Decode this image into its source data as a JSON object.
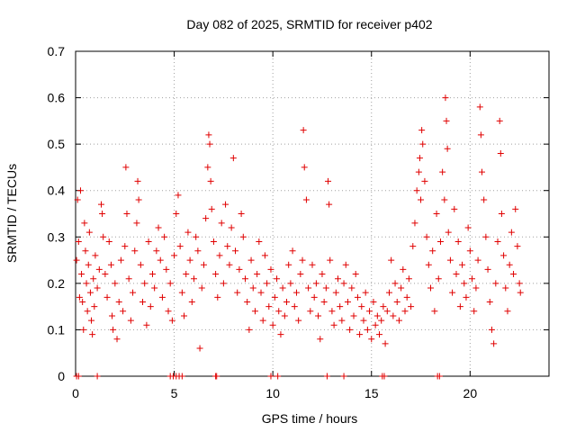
{
  "chart_data": {
    "type": "scatter",
    "title": "Day 082 of 2025, SRMTID for receiver p402",
    "xlabel": "GPS time / hours",
    "ylabel": "SRMTID / TECUs",
    "xlim": [
      0,
      24
    ],
    "ylim": [
      0,
      0.7
    ],
    "xticks": [
      0,
      5,
      10,
      15,
      20
    ],
    "xtick_labels": [
      "0",
      "5",
      "10",
      "15",
      "20"
    ],
    "yticks": [
      0,
      0.1,
      0.2,
      0.3,
      0.4,
      0.5,
      0.6,
      0.7
    ],
    "ytick_labels": [
      "0",
      "0.1",
      "0.2",
      "0.3",
      "0.4",
      "0.5",
      "0.6",
      "0.7"
    ],
    "grid": true,
    "marker": "+",
    "color": "#e00000",
    "series": [
      {
        "name": "SRMTID",
        "points": [
          [
            0.05,
            0.25
          ],
          [
            0.1,
            0.38
          ],
          [
            0.15,
            0.29
          ],
          [
            0.2,
            0.17
          ],
          [
            0.25,
            0.4
          ],
          [
            0.3,
            0.22
          ],
          [
            0.35,
            0.16
          ],
          [
            0.4,
            0.1
          ],
          [
            0.45,
            0.33
          ],
          [
            0.5,
            0.27
          ],
          [
            0.55,
            0.2
          ],
          [
            0.6,
            0.14
          ],
          [
            0.65,
            0.24
          ],
          [
            0.7,
            0.31
          ],
          [
            0.75,
            0.18
          ],
          [
            0.8,
            0.12
          ],
          [
            0.85,
            0.09
          ],
          [
            0.9,
            0.21
          ],
          [
            0.95,
            0.15
          ],
          [
            1.0,
            0.26
          ],
          [
            1.1,
            0.19
          ],
          [
            1.2,
            0.23
          ],
          [
            1.3,
            0.37
          ],
          [
            1.35,
            0.35
          ],
          [
            1.4,
            0.3
          ],
          [
            1.5,
            0.22
          ],
          [
            1.6,
            0.17
          ],
          [
            1.7,
            0.29
          ],
          [
            1.8,
            0.24
          ],
          [
            1.85,
            0.13
          ],
          [
            1.9,
            0.1
          ],
          [
            2.0,
            0.2
          ],
          [
            2.1,
            0.08
          ],
          [
            2.2,
            0.16
          ],
          [
            2.3,
            0.25
          ],
          [
            2.4,
            0.14
          ],
          [
            2.5,
            0.28
          ],
          [
            2.55,
            0.45
          ],
          [
            2.6,
            0.35
          ],
          [
            2.7,
            0.21
          ],
          [
            2.8,
            0.12
          ],
          [
            2.9,
            0.18
          ],
          [
            3.0,
            0.27
          ],
          [
            3.1,
            0.33
          ],
          [
            3.15,
            0.42
          ],
          [
            3.2,
            0.38
          ],
          [
            3.3,
            0.24
          ],
          [
            3.4,
            0.16
          ],
          [
            3.5,
            0.2
          ],
          [
            3.6,
            0.11
          ],
          [
            3.7,
            0.29
          ],
          [
            3.8,
            0.15
          ],
          [
            3.9,
            0.22
          ],
          [
            4.0,
            0.19
          ],
          [
            4.1,
            0.27
          ],
          [
            4.2,
            0.32
          ],
          [
            4.3,
            0.25
          ],
          [
            4.4,
            0.17
          ],
          [
            4.5,
            0.3
          ],
          [
            4.6,
            0.23
          ],
          [
            4.7,
            0.14
          ],
          [
            4.8,
            0.2
          ],
          [
            4.9,
            0.12
          ],
          [
            5.0,
            0.26
          ],
          [
            5.1,
            0.35
          ],
          [
            5.2,
            0.39
          ],
          [
            5.3,
            0.28
          ],
          [
            5.4,
            0.18
          ],
          [
            5.5,
            0.13
          ],
          [
            5.6,
            0.22
          ],
          [
            5.7,
            0.31
          ],
          [
            5.8,
            0.25
          ],
          [
            5.9,
            0.16
          ],
          [
            6.0,
            0.21
          ],
          [
            6.1,
            0.3
          ],
          [
            6.2,
            0.27
          ],
          [
            6.3,
            0.06
          ],
          [
            6.4,
            0.19
          ],
          [
            6.5,
            0.24
          ],
          [
            6.6,
            0.34
          ],
          [
            6.7,
            0.45
          ],
          [
            6.75,
            0.52
          ],
          [
            6.8,
            0.5
          ],
          [
            6.85,
            0.42
          ],
          [
            6.9,
            0.36
          ],
          [
            7.0,
            0.29
          ],
          [
            7.1,
            0.22
          ],
          [
            7.2,
            0.17
          ],
          [
            7.3,
            0.26
          ],
          [
            7.4,
            0.33
          ],
          [
            7.5,
            0.2
          ],
          [
            7.6,
            0.37
          ],
          [
            7.7,
            0.28
          ],
          [
            7.8,
            0.24
          ],
          [
            7.9,
            0.32
          ],
          [
            8.0,
            0.47
          ],
          [
            8.1,
            0.27
          ],
          [
            8.2,
            0.18
          ],
          [
            8.3,
            0.23
          ],
          [
            8.4,
            0.35
          ],
          [
            8.5,
            0.3
          ],
          [
            8.6,
            0.21
          ],
          [
            8.7,
            0.16
          ],
          [
            8.8,
            0.1
          ],
          [
            8.9,
            0.25
          ],
          [
            9.0,
            0.19
          ],
          [
            9.1,
            0.14
          ],
          [
            9.2,
            0.22
          ],
          [
            9.3,
            0.29
          ],
          [
            9.4,
            0.18
          ],
          [
            9.5,
            0.12
          ],
          [
            9.6,
            0.26
          ],
          [
            9.7,
            0.2
          ],
          [
            9.8,
            0.15
          ],
          [
            9.9,
            0.23
          ],
          [
            10.0,
            0.11
          ],
          [
            10.1,
            0.17
          ],
          [
            10.2,
            0.21
          ],
          [
            10.3,
            0.14
          ],
          [
            10.4,
            0.09
          ],
          [
            10.5,
            0.19
          ],
          [
            10.6,
            0.13
          ],
          [
            10.7,
            0.16
          ],
          [
            10.8,
            0.24
          ],
          [
            10.9,
            0.2
          ],
          [
            11.0,
            0.27
          ],
          [
            11.1,
            0.15
          ],
          [
            11.2,
            0.18
          ],
          [
            11.3,
            0.12
          ],
          [
            11.4,
            0.22
          ],
          [
            11.5,
            0.25
          ],
          [
            11.55,
            0.53
          ],
          [
            11.6,
            0.45
          ],
          [
            11.7,
            0.38
          ],
          [
            11.8,
            0.19
          ],
          [
            11.9,
            0.14
          ],
          [
            12.0,
            0.24
          ],
          [
            12.1,
            0.17
          ],
          [
            12.2,
            0.2
          ],
          [
            12.3,
            0.13
          ],
          [
            12.4,
            0.08
          ],
          [
            12.5,
            0.22
          ],
          [
            12.6,
            0.16
          ],
          [
            12.7,
            0.19
          ],
          [
            12.8,
            0.42
          ],
          [
            12.85,
            0.37
          ],
          [
            12.9,
            0.25
          ],
          [
            13.0,
            0.14
          ],
          [
            13.1,
            0.11
          ],
          [
            13.2,
            0.18
          ],
          [
            13.3,
            0.21
          ],
          [
            13.4,
            0.15
          ],
          [
            13.5,
            0.12
          ],
          [
            13.6,
            0.2
          ],
          [
            13.7,
            0.24
          ],
          [
            13.8,
            0.16
          ],
          [
            13.9,
            0.1
          ],
          [
            14.0,
            0.19
          ],
          [
            14.1,
            0.13
          ],
          [
            14.2,
            0.22
          ],
          [
            14.3,
            0.17
          ],
          [
            14.4,
            0.09
          ],
          [
            14.5,
            0.15
          ],
          [
            14.6,
            0.12
          ],
          [
            14.7,
            0.18
          ],
          [
            14.8,
            0.1
          ],
          [
            14.9,
            0.14
          ],
          [
            15.0,
            0.08
          ],
          [
            15.1,
            0.16
          ],
          [
            15.2,
            0.11
          ],
          [
            15.3,
            0.13
          ],
          [
            15.4,
            0.09
          ],
          [
            15.5,
            0.12
          ],
          [
            15.6,
            0.15
          ],
          [
            15.7,
            0.07
          ],
          [
            15.8,
            0.14
          ],
          [
            15.9,
            0.18
          ],
          [
            16.0,
            0.25
          ],
          [
            16.1,
            0.13
          ],
          [
            16.2,
            0.2
          ],
          [
            16.3,
            0.16
          ],
          [
            16.4,
            0.12
          ],
          [
            16.5,
            0.19
          ],
          [
            16.6,
            0.23
          ],
          [
            16.7,
            0.14
          ],
          [
            16.8,
            0.17
          ],
          [
            16.9,
            0.21
          ],
          [
            17.0,
            0.15
          ],
          [
            17.1,
            0.28
          ],
          [
            17.2,
            0.33
          ],
          [
            17.3,
            0.4
          ],
          [
            17.4,
            0.44
          ],
          [
            17.45,
            0.47
          ],
          [
            17.5,
            0.38
          ],
          [
            17.55,
            0.53
          ],
          [
            17.6,
            0.5
          ],
          [
            17.7,
            0.42
          ],
          [
            17.8,
            0.3
          ],
          [
            17.9,
            0.24
          ],
          [
            18.0,
            0.19
          ],
          [
            18.1,
            0.27
          ],
          [
            18.2,
            0.14
          ],
          [
            18.3,
            0.35
          ],
          [
            18.4,
            0.21
          ],
          [
            18.5,
            0.29
          ],
          [
            18.6,
            0.44
          ],
          [
            18.7,
            0.38
          ],
          [
            18.75,
            0.6
          ],
          [
            18.8,
            0.55
          ],
          [
            18.85,
            0.49
          ],
          [
            18.9,
            0.31
          ],
          [
            19.0,
            0.25
          ],
          [
            19.1,
            0.18
          ],
          [
            19.2,
            0.36
          ],
          [
            19.3,
            0.22
          ],
          [
            19.4,
            0.29
          ],
          [
            19.5,
            0.15
          ],
          [
            19.6,
            0.24
          ],
          [
            19.7,
            0.2
          ],
          [
            19.8,
            0.17
          ],
          [
            19.9,
            0.32
          ],
          [
            20.0,
            0.27
          ],
          [
            20.1,
            0.21
          ],
          [
            20.2,
            0.14
          ],
          [
            20.3,
            0.19
          ],
          [
            20.4,
            0.25
          ],
          [
            20.5,
            0.58
          ],
          [
            20.55,
            0.52
          ],
          [
            20.6,
            0.44
          ],
          [
            20.7,
            0.38
          ],
          [
            20.8,
            0.3
          ],
          [
            20.9,
            0.23
          ],
          [
            21.0,
            0.16
          ],
          [
            21.1,
            0.1
          ],
          [
            21.2,
            0.07
          ],
          [
            21.3,
            0.2
          ],
          [
            21.4,
            0.29
          ],
          [
            21.5,
            0.55
          ],
          [
            21.55,
            0.48
          ],
          [
            21.6,
            0.35
          ],
          [
            21.7,
            0.26
          ],
          [
            21.8,
            0.19
          ],
          [
            21.9,
            0.14
          ],
          [
            22.0,
            0.24
          ],
          [
            22.1,
            0.31
          ],
          [
            22.2,
            0.22
          ],
          [
            22.3,
            0.36
          ],
          [
            22.4,
            0.28
          ],
          [
            22.5,
            0.2
          ],
          [
            22.55,
            0.18
          ]
        ]
      }
    ],
    "zero_markers_x": [
      0.05,
      0.15,
      1.1,
      4.8,
      4.95,
      5.1,
      5.25,
      5.4,
      7.1,
      7.15,
      9.9,
      10.25,
      12.75,
      13.6,
      15.55,
      15.65,
      18.35,
      18.45
    ]
  }
}
